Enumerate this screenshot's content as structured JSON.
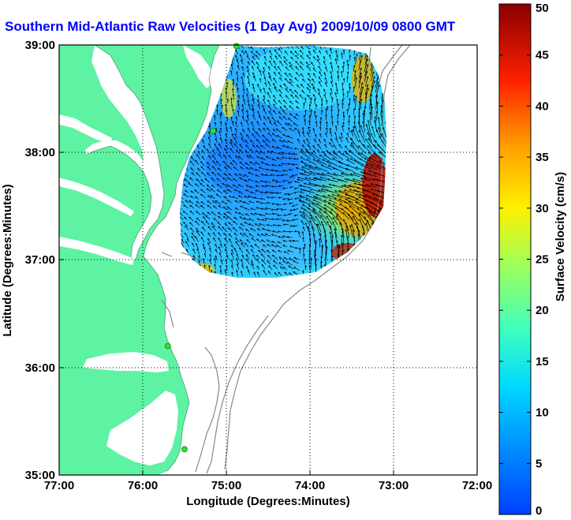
{
  "title": "Southern Mid-Atlantic Raw Velocities (1 Day Avg) 2009/10/09 0800 GMT",
  "x_axis": {
    "label": "Longitude (Degrees:Minutes)",
    "ticks": [
      "77:00",
      "76:00",
      "75:00",
      "74:00",
      "73:00",
      "72:00"
    ]
  },
  "y_axis": {
    "label": "Latitude (Degrees:Minutes)",
    "ticks": [
      "39:00",
      "38:00",
      "37:00",
      "36:00",
      "35:00"
    ]
  },
  "colorbar": {
    "label": "Surface Velocity (cm/s)",
    "min": 0,
    "max": 50,
    "ticks": [
      "0",
      "5",
      "10",
      "15",
      "20",
      "25",
      "30",
      "35",
      "40",
      "45",
      "50"
    ]
  },
  "colors": {
    "land": "#5df3a3",
    "water": "#ffffff",
    "title": "#0000ff",
    "station": "#33dd33",
    "bathymetry": "#888888"
  },
  "map_extent": {
    "lon_min": -77,
    "lon_max": -72,
    "lat_min": 35,
    "lat_max": 39
  },
  "stations": [
    {
      "lon": -74.88,
      "lat": 38.99
    },
    {
      "lon": -75.16,
      "lat": 38.2
    },
    {
      "lon": -75.7,
      "lat": 36.2
    },
    {
      "lon": -75.5,
      "lat": 35.24
    }
  ]
}
